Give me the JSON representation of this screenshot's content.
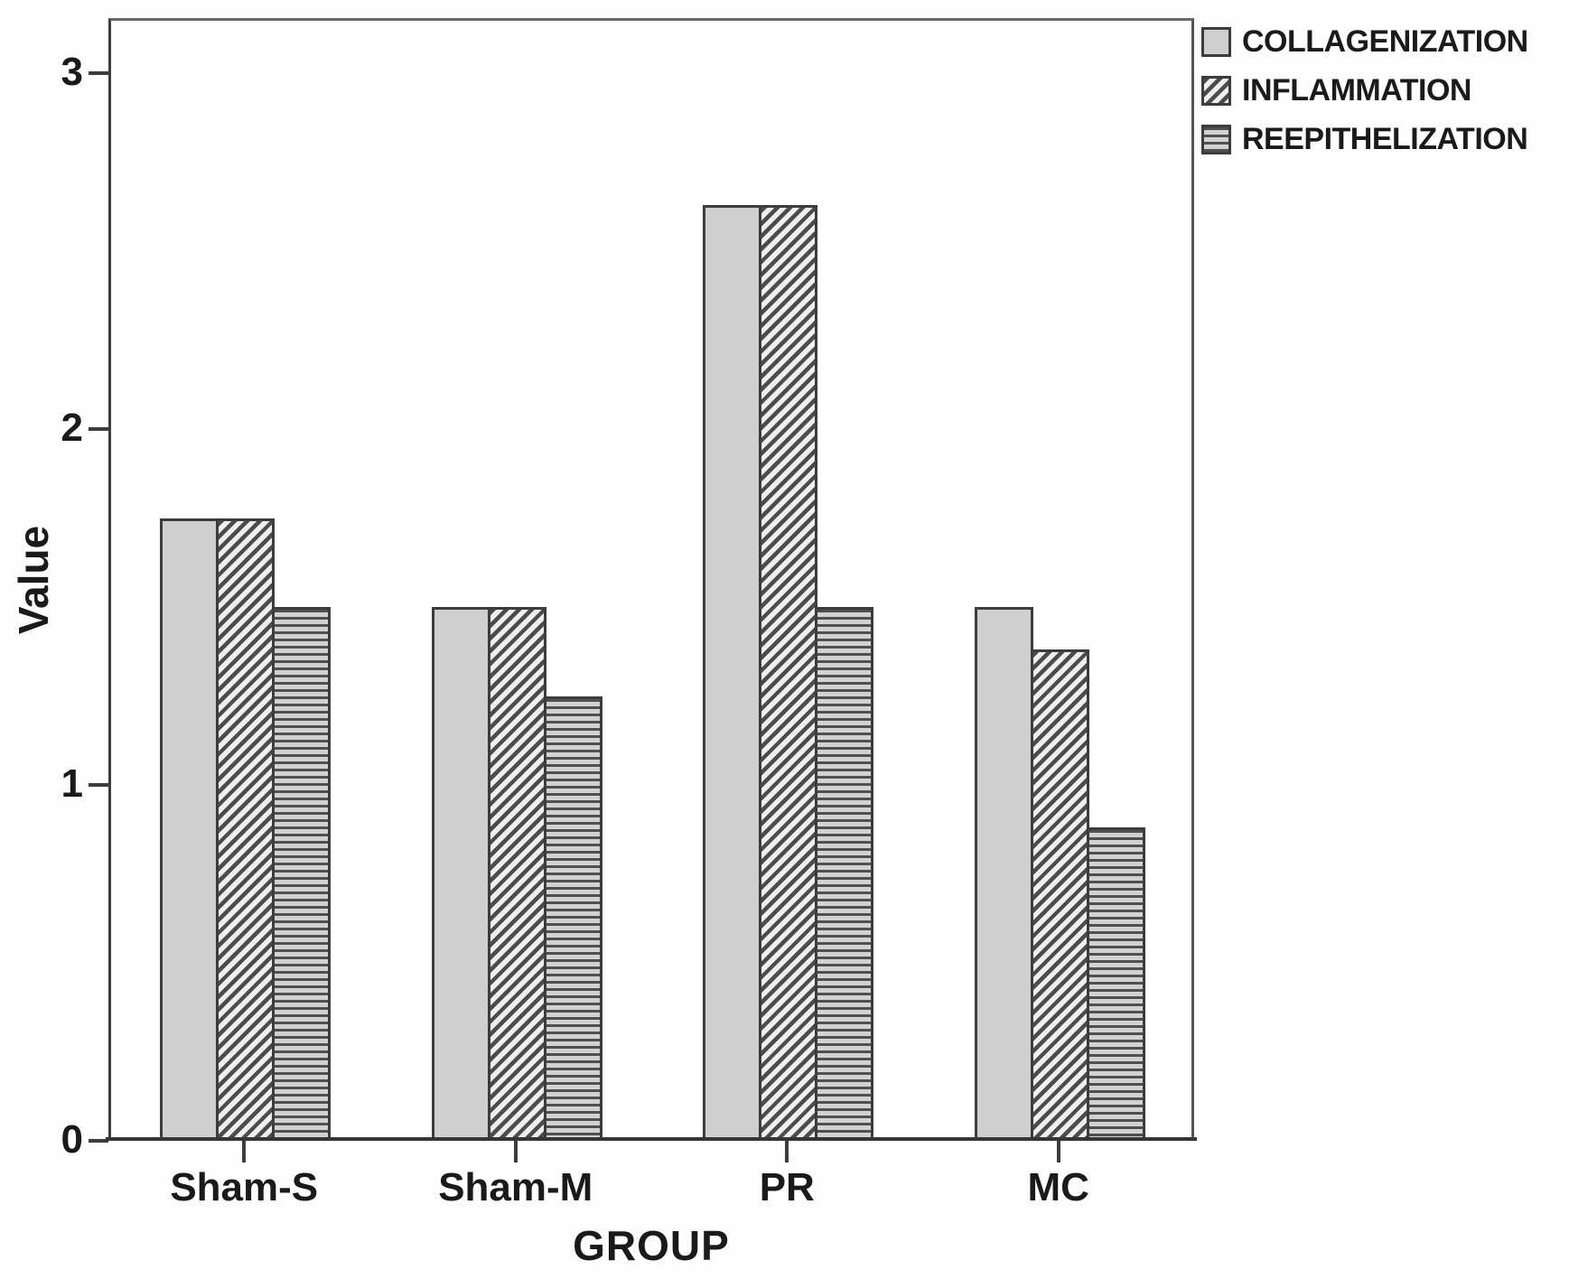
{
  "chart_data": {
    "type": "bar",
    "title": "",
    "xlabel": "GROUP",
    "ylabel": "Value",
    "categories": [
      "Sham-S",
      "Sham-M",
      "PR",
      "MC"
    ],
    "series": [
      {
        "name": "COLLAGENIZATION",
        "pattern": "solid-light-gray",
        "values": [
          1.75,
          1.5,
          2.63,
          1.5
        ]
      },
      {
        "name": "INFLAMMATION",
        "pattern": "diagonal-hatch",
        "values": [
          1.75,
          1.5,
          2.63,
          1.38
        ]
      },
      {
        "name": "REEPITHELIZATION",
        "pattern": "horizontal-hatch",
        "values": [
          1.5,
          1.25,
          1.5,
          0.88
        ]
      }
    ],
    "yticks": [
      "0",
      "1",
      "2",
      "3"
    ],
    "ylim": [
      0,
      3.15
    ],
    "grid": false,
    "legend_position": "top-right-outside",
    "colors": {
      "bar_fill": "#cfcfcf",
      "hatch_stroke": "#4c4c4c",
      "hatch_bg": "#efefef",
      "hstripe_bg": "#d2d2d2",
      "axis": "#3d3d3d",
      "text": "#1a1a1a"
    }
  }
}
